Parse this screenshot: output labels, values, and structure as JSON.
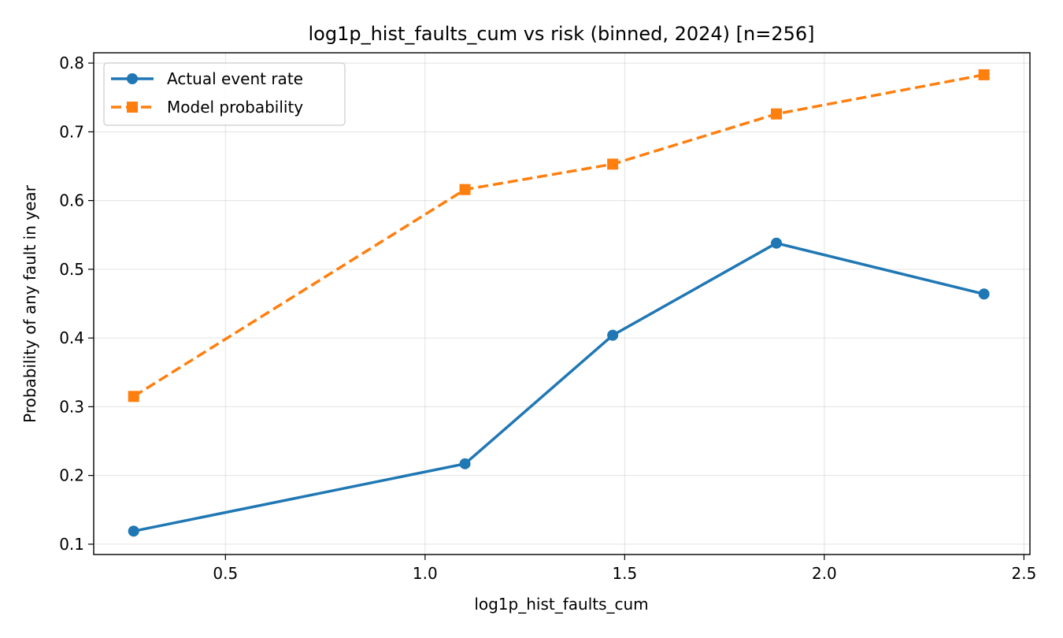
{
  "chart_data": {
    "type": "line",
    "title": "log1p_hist_faults_cum vs risk (binned, 2024)  [n=256]",
    "xlabel": "log1p_hist_faults_cum",
    "ylabel": "Probability of any fault in year",
    "xlim": [
      0.17,
      2.515
    ],
    "ylim": [
      0.085,
      0.815
    ],
    "xticks": [
      0.5,
      1.0,
      1.5,
      2.0,
      2.5
    ],
    "xtick_labels": [
      "0.5",
      "1.0",
      "1.5",
      "2.0",
      "2.5"
    ],
    "yticks": [
      0.1,
      0.2,
      0.3,
      0.4,
      0.5,
      0.6,
      0.7,
      0.8
    ],
    "ytick_labels": [
      "0.1",
      "0.2",
      "0.3",
      "0.4",
      "0.5",
      "0.6",
      "0.7",
      "0.8"
    ],
    "grid": true,
    "legend_position": "top-left",
    "x": [
      0.27,
      1.1,
      1.47,
      1.88,
      2.4
    ],
    "series": [
      {
        "name": "Actual event rate",
        "values": [
          0.119,
          0.217,
          0.404,
          0.538,
          0.464
        ],
        "color": "#1f77b4",
        "marker": "circle",
        "line": "solid"
      },
      {
        "name": "Model probability",
        "values": [
          0.315,
          0.616,
          0.653,
          0.726,
          0.783
        ],
        "color": "#ff7f0e",
        "marker": "square",
        "line": "dashed"
      }
    ]
  }
}
